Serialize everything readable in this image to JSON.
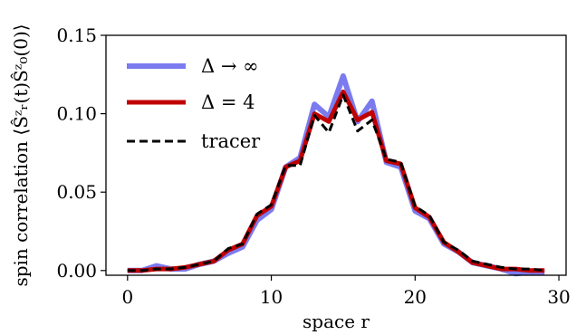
{
  "chart_data": {
    "type": "line",
    "xlabel": "space r",
    "ylabel": "spin correlation ⟨Ŝᶻᵣ(t)Ŝᶻ₀(0)⟩",
    "xlim": [
      -1.5,
      30.5
    ],
    "ylim": [
      -0.003,
      0.15
    ],
    "xticks": [
      0,
      10,
      20,
      30
    ],
    "xtick_labels": [
      "0",
      "10",
      "20",
      "30"
    ],
    "yticks": [
      0.0,
      0.05,
      0.1,
      0.15
    ],
    "ytick_labels": [
      "0.00",
      "0.05",
      "0.10",
      "0.15"
    ],
    "grid": false,
    "legend_position": "top-left",
    "x": [
      0,
      1,
      2,
      3,
      4,
      5,
      6,
      7,
      8,
      9,
      10,
      11,
      12,
      13,
      14,
      15,
      16,
      17,
      18,
      19,
      20,
      21,
      22,
      23,
      24,
      25,
      26,
      27,
      28,
      29
    ],
    "series": [
      {
        "name": "Δ → ∞",
        "color": "#7b7bef",
        "style": "solid",
        "values": [
          0.0,
          0.0,
          0.003,
          0.001,
          0.001,
          0.004,
          0.006,
          0.011,
          0.015,
          0.032,
          0.039,
          0.066,
          0.072,
          0.106,
          0.098,
          0.124,
          0.095,
          0.108,
          0.069,
          0.066,
          0.038,
          0.033,
          0.017,
          0.012,
          0.005,
          0.003,
          0.001,
          -0.002,
          -0.001,
          -0.001
        ]
      },
      {
        "name": "Δ = 4",
        "color": "#c00000",
        "style": "solid",
        "values": [
          0.0,
          0.0,
          0.001,
          0.001,
          0.002,
          0.004,
          0.006,
          0.013,
          0.017,
          0.035,
          0.041,
          0.066,
          0.07,
          0.1,
          0.095,
          0.114,
          0.096,
          0.101,
          0.07,
          0.068,
          0.04,
          0.034,
          0.018,
          0.012,
          0.005,
          0.003,
          0.001,
          0.001,
          0.0,
          0.0
        ]
      },
      {
        "name": "tracer",
        "color": "#000000",
        "style": "dashed",
        "values": [
          0.0,
          0.0,
          0.001,
          0.001,
          0.002,
          0.004,
          0.006,
          0.014,
          0.017,
          0.036,
          0.042,
          0.067,
          0.067,
          0.099,
          0.088,
          0.112,
          0.089,
          0.096,
          0.071,
          0.069,
          0.041,
          0.035,
          0.018,
          0.013,
          0.006,
          0.004,
          0.002,
          0.001,
          0.001,
          0.0
        ]
      }
    ]
  }
}
